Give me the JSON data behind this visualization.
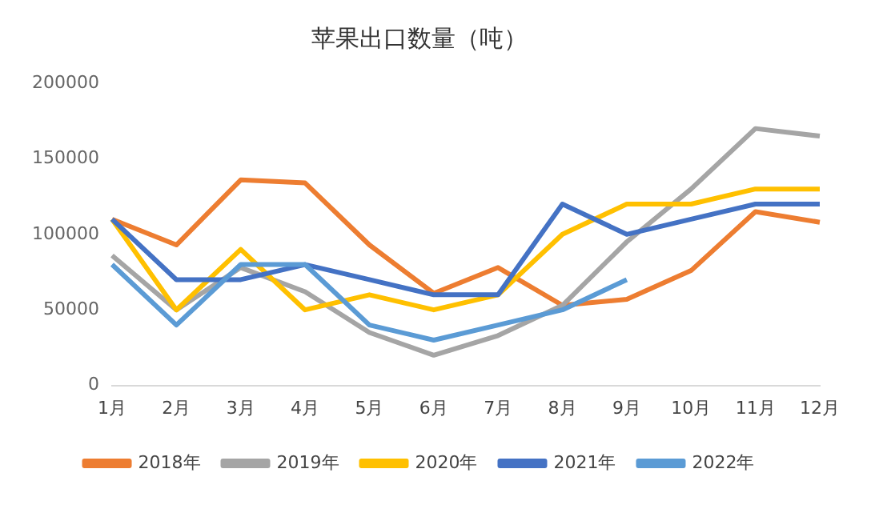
{
  "chart_data": {
    "type": "line",
    "title": "苹果出口数量（吨）",
    "categories": [
      "1月",
      "2月",
      "3月",
      "4月",
      "5月",
      "6月",
      "7月",
      "8月",
      "9月",
      "10月",
      "11月",
      "12月"
    ],
    "series": [
      {
        "name": "2018年",
        "color": "#ed7d31",
        "values": [
          110000,
          93000,
          136000,
          134000,
          93000,
          61000,
          78000,
          53000,
          57000,
          76000,
          115000,
          108000
        ]
      },
      {
        "name": "2019年",
        "color": "#a5a5a5",
        "values": [
          86000,
          50000,
          78000,
          62000,
          35000,
          20000,
          33000,
          53000,
          95000,
          130000,
          170000,
          165000
        ]
      },
      {
        "name": "2020年",
        "color": "#ffc000",
        "values": [
          110000,
          50000,
          90000,
          50000,
          60000,
          50000,
          60000,
          100000,
          120000,
          120000,
          130000,
          130000
        ]
      },
      {
        "name": "2021年",
        "color": "#4472c4",
        "values": [
          110000,
          70000,
          70000,
          80000,
          70000,
          60000,
          60000,
          120000,
          100000,
          110000,
          120000,
          120000
        ]
      },
      {
        "name": "2022年",
        "color": "#5b9bd5",
        "values": [
          80000,
          40000,
          80000,
          80000,
          40000,
          30000,
          40000,
          50000,
          70000,
          null,
          null,
          null
        ]
      }
    ],
    "ylim": [
      0,
      200000
    ],
    "yticks": [
      0,
      50000,
      100000,
      150000,
      200000
    ],
    "grid": false,
    "legend": "bottom",
    "marker": "none",
    "line_style": "solid"
  }
}
